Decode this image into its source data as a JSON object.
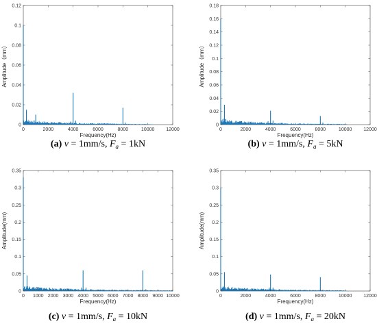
{
  "figure": {
    "panels": [
      {
        "caption": {
          "letter": "(a)",
          "v": "v",
          "eq1": " = 1mm/s, ",
          "F": "F",
          "sub": "a",
          "eq2": " = 1kN"
        },
        "chart_data": {
          "type": "line",
          "title": "",
          "xlabel": "Frequency(Hz)",
          "ylabel": "Amplitude（mm）",
          "xlim": [
            0,
            12000
          ],
          "ylim": [
            0,
            0.12
          ],
          "xticks": [
            0,
            2000,
            4000,
            6000,
            8000,
            10000,
            12000
          ],
          "yticks": [
            0,
            0.02,
            0.04,
            0.06,
            0.08,
            0.1,
            0.12
          ],
          "xtick_labels": [
            "0",
            "2000",
            "4000",
            "6000",
            "8000",
            "10000",
            "12000"
          ],
          "ytick_labels": [
            "0",
            "0.02",
            "0.04",
            "0.06",
            "0.08",
            "0.1",
            "0.12"
          ],
          "noise_floor": [
            [
              0,
              0.006
            ],
            [
              1000,
              0.004
            ],
            [
              2000,
              0.003
            ],
            [
              4000,
              0.002
            ],
            [
              6000,
              0.0015
            ],
            [
              8000,
              0.001
            ],
            [
              10000,
              0.0006
            ],
            [
              10500,
              0
            ]
          ],
          "peaks": [
            [
              0,
              0.1
            ],
            [
              250,
              0.015
            ],
            [
              1000,
              0.01
            ],
            [
              3800,
              0.003
            ],
            [
              4000,
              0.032
            ],
            [
              4200,
              0.004
            ],
            [
              8000,
              0.017
            ],
            [
              8200,
              0.002
            ]
          ],
          "line_color": "#1f77b4",
          "grid": false
        }
      },
      {
        "caption": {
          "letter": "(b)",
          "v": "v",
          "eq1": " = 1mm/s, ",
          "F": "F",
          "sub": "a",
          "eq2": " = 5kN"
        },
        "chart_data": {
          "type": "line",
          "title": "",
          "xlabel": "Frequency(Hz)",
          "ylabel": "Amplitude（mm）",
          "xlim": [
            0,
            12000
          ],
          "ylim": [
            0,
            0.18
          ],
          "xticks": [
            0,
            2000,
            4000,
            6000,
            8000,
            10000,
            12000
          ],
          "yticks": [
            0,
            0.02,
            0.04,
            0.06,
            0.08,
            0.1,
            0.12,
            0.14,
            0.16,
            0.18
          ],
          "xtick_labels": [
            "0",
            "2000",
            "4000",
            "6000",
            "8000",
            "10000",
            "12000"
          ],
          "ytick_labels": [
            "0",
            "0.02",
            "0.04",
            "0.06",
            "0.08",
            "0.1",
            "0.12",
            "0.14",
            "0.16",
            "0.18"
          ],
          "noise_floor": [
            [
              0,
              0.01
            ],
            [
              1000,
              0.007
            ],
            [
              2000,
              0.005
            ],
            [
              4000,
              0.003
            ],
            [
              6000,
              0.002
            ],
            [
              8000,
              0.0015
            ],
            [
              10000,
              0.001
            ],
            [
              10200,
              0
            ]
          ],
          "peaks": [
            [
              0,
              0.16
            ],
            [
              300,
              0.03
            ],
            [
              3800,
              0.005
            ],
            [
              4000,
              0.021
            ],
            [
              4200,
              0.006
            ],
            [
              8000,
              0.013
            ],
            [
              8200,
              0.003
            ]
          ],
          "line_color": "#1f77b4",
          "grid": false
        }
      },
      {
        "caption": {
          "letter": "(c)",
          "v": "v",
          "eq1": " = 1mm/s, ",
          "F": "F",
          "sub": "a",
          "eq2": " = 10kN"
        },
        "chart_data": {
          "type": "line",
          "title": "",
          "xlabel": "Frequency(Hz)",
          "ylabel": "Amplitude(mm)",
          "xlim": [
            0,
            10000
          ],
          "ylim": [
            0,
            0.35
          ],
          "xticks": [
            0,
            1000,
            2000,
            3000,
            4000,
            5000,
            6000,
            7000,
            8000,
            9000,
            10000
          ],
          "yticks": [
            0,
            0.05,
            0.1,
            0.15,
            0.2,
            0.25,
            0.3,
            0.35
          ],
          "xtick_labels": [
            "0",
            "1000",
            "2000",
            "3000",
            "4000",
            "5000",
            "6000",
            "7000",
            "8000",
            "9000",
            "10000"
          ],
          "ytick_labels": [
            "0",
            "0.05",
            "0.1",
            "0.15",
            "0.2",
            "0.25",
            "0.3",
            "0.35"
          ],
          "noise_floor": [
            [
              0,
              0.015
            ],
            [
              1000,
              0.012
            ],
            [
              2000,
              0.009
            ],
            [
              4000,
              0.006
            ],
            [
              6000,
              0.004
            ],
            [
              8000,
              0.003
            ],
            [
              10000,
              0.002
            ]
          ],
          "peaks": [
            [
              0,
              0.33
            ],
            [
              250,
              0.045
            ],
            [
              3900,
              0.01
            ],
            [
              4000,
              0.06
            ],
            [
              4200,
              0.01
            ],
            [
              8000,
              0.06
            ],
            [
              8200,
              0.005
            ],
            [
              9000,
              0.003
            ]
          ],
          "line_color": "#1f77b4",
          "grid": false
        }
      },
      {
        "caption": {
          "letter": "(d)",
          "v": "v",
          "eq1": " = 1mm/s, ",
          "F": "F",
          "sub": "a",
          "eq2": " = 20kN"
        },
        "chart_data": {
          "type": "line",
          "title": "",
          "xlabel": "Frequency(Hz)",
          "ylabel": "Amplitude(mm)",
          "xlim": [
            0,
            12000
          ],
          "ylim": [
            0,
            0.35
          ],
          "xticks": [
            0,
            2000,
            4000,
            6000,
            8000,
            10000,
            12000
          ],
          "yticks": [
            0,
            0.05,
            0.1,
            0.15,
            0.2,
            0.25,
            0.3,
            0.35
          ],
          "xtick_labels": [
            "0",
            "2000",
            "4000",
            "6000",
            "8000",
            "10000",
            "12000"
          ],
          "ytick_labels": [
            "0",
            "0.05",
            "0.1",
            "0.15",
            "0.2",
            "0.25",
            "0.3",
            "0.35"
          ],
          "noise_floor": [
            [
              0,
              0.015
            ],
            [
              1000,
              0.012
            ],
            [
              2000,
              0.009
            ],
            [
              4000,
              0.006
            ],
            [
              6000,
              0.004
            ],
            [
              8000,
              0.003
            ],
            [
              10000,
              0.002
            ],
            [
              10200,
              0
            ]
          ],
          "peaks": [
            [
              0,
              0.3
            ],
            [
              300,
              0.055
            ],
            [
              3900,
              0.01
            ],
            [
              4000,
              0.048
            ],
            [
              4200,
              0.01
            ],
            [
              8000,
              0.04
            ],
            [
              8200,
              0.004
            ]
          ],
          "line_color": "#1f77b4",
          "grid": false
        }
      }
    ]
  }
}
